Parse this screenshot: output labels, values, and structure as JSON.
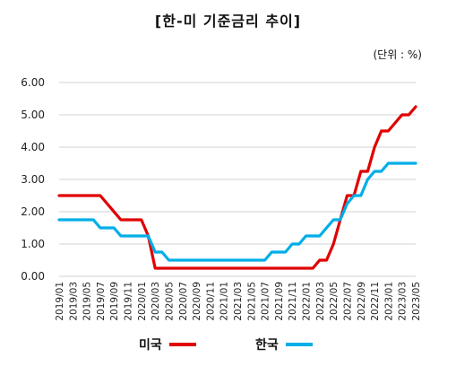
{
  "title": "[한-미 기준금리 추이]",
  "unit": "(단위 : %)",
  "chart_data": {
    "type": "line",
    "title": "[한-미 기준금리 추이]",
    "ylim": [
      0,
      6
    ],
    "yticks": [
      "0.00",
      "1.00",
      "2.00",
      "3.00",
      "4.00",
      "5.00",
      "6.00"
    ],
    "xtick_labels": [
      "2019/01",
      "2019/03",
      "2019/05",
      "2019/07",
      "2019/09",
      "2019/11",
      "2020/01",
      "2020/03",
      "2020/05",
      "2020/07",
      "2020/09",
      "2020/11",
      "2021/01",
      "2021/03",
      "2021/05",
      "2021/07",
      "2021/09",
      "2021/11",
      "2022/01",
      "2022/03",
      "2022/05",
      "2022/07",
      "2022/09",
      "2022/11",
      "2023/01",
      "2023/03",
      "2023/05"
    ],
    "grid": true,
    "legend": "bottom",
    "series": [
      {
        "name": "미국",
        "color": "#e00000",
        "points": [
          [
            0,
            2.5
          ],
          [
            6,
            2.5
          ],
          [
            9,
            1.75
          ],
          [
            12,
            1.75
          ],
          [
            13,
            1.25
          ],
          [
            14,
            0.25
          ],
          [
            37,
            0.25
          ],
          [
            38,
            0.5
          ],
          [
            39,
            0.5
          ],
          [
            40,
            1.0
          ],
          [
            41,
            1.75
          ],
          [
            42,
            2.5
          ],
          [
            43,
            2.5
          ],
          [
            44,
            3.25
          ],
          [
            45,
            3.25
          ],
          [
            46,
            4.0
          ],
          [
            47,
            4.5
          ],
          [
            48,
            4.5
          ],
          [
            50,
            5.0
          ],
          [
            51,
            5.0
          ],
          [
            52,
            5.25
          ]
        ]
      },
      {
        "name": "한국",
        "color": "#00aee8",
        "points": [
          [
            0,
            1.75
          ],
          [
            5,
            1.75
          ],
          [
            6,
            1.5
          ],
          [
            8,
            1.5
          ],
          [
            9,
            1.25
          ],
          [
            13,
            1.25
          ],
          [
            14,
            0.75
          ],
          [
            15,
            0.75
          ],
          [
            16,
            0.5
          ],
          [
            30,
            0.5
          ],
          [
            31,
            0.75
          ],
          [
            33,
            0.75
          ],
          [
            34,
            1.0
          ],
          [
            35,
            1.0
          ],
          [
            36,
            1.25
          ],
          [
            38,
            1.25
          ],
          [
            40,
            1.75
          ],
          [
            41,
            1.75
          ],
          [
            42,
            2.25
          ],
          [
            43,
            2.5
          ],
          [
            44,
            2.5
          ],
          [
            45,
            3.0
          ],
          [
            46,
            3.25
          ],
          [
            47,
            3.25
          ],
          [
            48,
            3.5
          ],
          [
            52,
            3.5
          ]
        ]
      }
    ]
  },
  "legend": {
    "us_label": "미국",
    "kr_label": "한국"
  }
}
